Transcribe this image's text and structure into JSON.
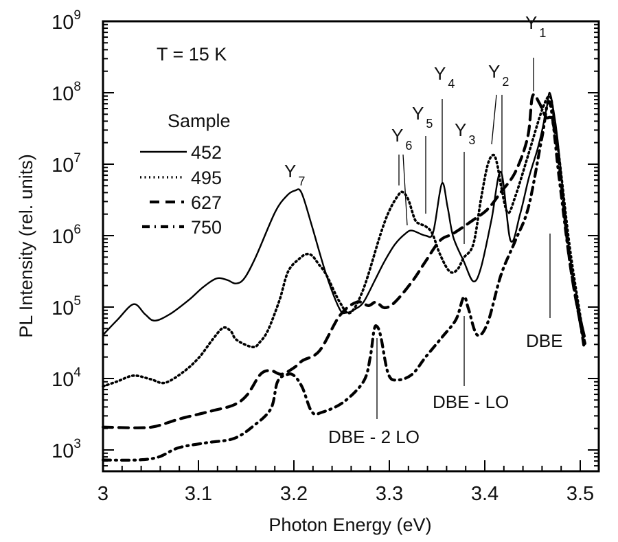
{
  "chart_data": {
    "type": "line",
    "title": "",
    "xlabel": "Photon Energy (eV)",
    "ylabel": "PL Intensity (rel. units)",
    "xlim": [
      3.0,
      3.52
    ],
    "ylim": [
      500,
      1000000000
    ],
    "yscale": "log",
    "x_ticks": [
      3.0,
      3.1,
      3.2,
      3.3,
      3.4,
      3.5
    ],
    "x_tick_labels": [
      "3",
      "3.1",
      "3.2",
      "3.3",
      "3.4",
      "3.5"
    ],
    "x_minor_step": 0.02,
    "y_ticks": [
      1000,
      10000,
      100000,
      1000000,
      10000000,
      100000000,
      1000000000
    ],
    "y_tick_labels": [
      {
        "base": "10",
        "exp": "3"
      },
      {
        "base": "10",
        "exp": "4"
      },
      {
        "base": "10",
        "exp": "5"
      },
      {
        "base": "10",
        "exp": "6"
      },
      {
        "base": "10",
        "exp": "7"
      },
      {
        "base": "10",
        "exp": "8"
      },
      {
        "base": "10",
        "exp": "9"
      }
    ],
    "grid": false,
    "annotation_temperature": "T = 15 K",
    "legend": {
      "title": "Sample",
      "placement": "top-left",
      "entries": [
        {
          "label": "452",
          "style": "solid"
        },
        {
          "label": "495",
          "style": "dotted"
        },
        {
          "label": "627",
          "style": "dashed"
        },
        {
          "label": "750",
          "style": "dashdot"
        }
      ]
    },
    "series": [
      {
        "name": "452",
        "style": "solid",
        "x": [
          3.0,
          3.015,
          3.032,
          3.044,
          3.054,
          3.07,
          3.09,
          3.105,
          3.119,
          3.13,
          3.139,
          3.148,
          3.16,
          3.18,
          3.192,
          3.201,
          3.208,
          3.219,
          3.234,
          3.248,
          3.255,
          3.264,
          3.273,
          3.285,
          3.295,
          3.306,
          3.317,
          3.324,
          3.338,
          3.346,
          3.355,
          3.361,
          3.367,
          3.378,
          3.388,
          3.396,
          3.407,
          3.417,
          3.427,
          3.437,
          3.446,
          3.455,
          3.46,
          3.465,
          3.468,
          3.472,
          3.476,
          3.482,
          3.489,
          3.495,
          3.5,
          3.505
        ],
        "log10_y": [
          4.61,
          4.82,
          5.04,
          4.9,
          4.81,
          4.9,
          5.1,
          5.28,
          5.4,
          5.38,
          5.33,
          5.4,
          5.7,
          6.32,
          6.55,
          6.63,
          6.6,
          6.13,
          5.45,
          4.97,
          4.92,
          4.97,
          5.07,
          5.38,
          5.64,
          5.88,
          6.03,
          6.07,
          6.0,
          6.05,
          6.73,
          6.4,
          5.98,
          5.64,
          5.36,
          5.55,
          6.22,
          6.89,
          5.93,
          6.3,
          6.8,
          7.2,
          7.47,
          7.8,
          8.0,
          7.75,
          7.38,
          6.6,
          5.74,
          5.25,
          4.88,
          4.59
        ]
      },
      {
        "name": "495",
        "style": "dotted",
        "x": [
          3.0,
          3.015,
          3.032,
          3.05,
          3.065,
          3.085,
          3.101,
          3.115,
          3.126,
          3.134,
          3.14,
          3.157,
          3.165,
          3.173,
          3.185,
          3.194,
          3.206,
          3.213,
          3.219,
          3.226,
          3.234,
          3.248,
          3.259,
          3.273,
          3.291,
          3.3,
          3.309,
          3.314,
          3.32,
          3.327,
          3.333,
          3.338,
          3.345,
          3.353,
          3.363,
          3.371,
          3.378,
          3.388,
          3.396,
          3.403,
          3.409,
          3.413,
          3.417,
          3.424,
          3.432,
          3.446,
          3.46,
          3.468,
          3.472,
          3.478,
          3.489,
          3.5,
          3.505
        ],
        "log10_y": [
          3.89,
          3.96,
          4.04,
          3.99,
          3.94,
          4.1,
          4.3,
          4.55,
          4.71,
          4.66,
          4.54,
          4.44,
          4.52,
          4.68,
          5.1,
          5.5,
          5.68,
          5.74,
          5.72,
          5.6,
          5.45,
          5.07,
          4.92,
          5.26,
          6.03,
          6.35,
          6.56,
          6.61,
          6.5,
          6.22,
          6.16,
          6.13,
          6.03,
          5.74,
          5.5,
          5.52,
          5.69,
          5.88,
          6.51,
          6.99,
          7.13,
          7.0,
          6.7,
          6.32,
          6.55,
          7.15,
          7.76,
          7.95,
          7.7,
          7.09,
          5.84,
          4.88,
          4.49
        ]
      },
      {
        "name": "627",
        "style": "dashed",
        "x": [
          3.0,
          3.036,
          3.055,
          3.079,
          3.1,
          3.115,
          3.137,
          3.151,
          3.165,
          3.176,
          3.187,
          3.2,
          3.209,
          3.227,
          3.248,
          3.266,
          3.278,
          3.286,
          3.295,
          3.306,
          3.324,
          3.338,
          3.353,
          3.367,
          3.388,
          3.403,
          3.417,
          3.432,
          3.445,
          3.45,
          3.457,
          3.464,
          3.471,
          3.478,
          3.489,
          3.5,
          3.505
        ],
        "log10_y": [
          3.32,
          3.31,
          3.33,
          3.43,
          3.5,
          3.55,
          3.63,
          3.77,
          4.06,
          4.11,
          4.06,
          4.15,
          4.25,
          4.39,
          4.88,
          5.07,
          5.02,
          5.07,
          4.99,
          5.07,
          5.36,
          5.64,
          5.93,
          6.03,
          6.22,
          6.37,
          6.61,
          6.89,
          7.38,
          7.95,
          7.86,
          7.66,
          7.6,
          6.99,
          5.64,
          4.78,
          4.49
        ]
      },
      {
        "name": "750",
        "style": "dashdot",
        "x": [
          3.0,
          3.036,
          3.058,
          3.079,
          3.108,
          3.137,
          3.158,
          3.176,
          3.183,
          3.194,
          3.201,
          3.209,
          3.219,
          3.23,
          3.252,
          3.273,
          3.28,
          3.284,
          3.287,
          3.291,
          3.299,
          3.309,
          3.324,
          3.338,
          3.356,
          3.37,
          3.378,
          3.383,
          3.392,
          3.403,
          3.417,
          3.432,
          3.446,
          3.46,
          3.468,
          3.478,
          3.489,
          3.5,
          3.504
        ],
        "log10_y": [
          2.86,
          2.86,
          2.9,
          3.03,
          3.1,
          3.16,
          3.34,
          3.58,
          3.96,
          4.06,
          4.03,
          3.87,
          3.53,
          3.53,
          3.67,
          3.96,
          4.3,
          4.68,
          4.73,
          4.59,
          4.06,
          3.98,
          4.06,
          4.3,
          4.59,
          4.83,
          5.14,
          4.97,
          4.61,
          4.78,
          5.45,
          5.93,
          6.41,
          7.38,
          7.86,
          6.8,
          5.64,
          4.78,
          4.44
        ]
      }
    ],
    "peak_labels": [
      {
        "main": "Y",
        "sub": "1",
        "energy": 3.451
      },
      {
        "main": "Y",
        "sub": "2",
        "energy": 3.414
      },
      {
        "main": "Y",
        "sub": "3",
        "energy": 3.378
      },
      {
        "main": "Y",
        "sub": "4",
        "energy": 3.355
      },
      {
        "main": "Y",
        "sub": "5",
        "energy": 3.338
      },
      {
        "main": "Y",
        "sub": "6",
        "energy": 3.312
      },
      {
        "main": "Y",
        "sub": "7",
        "energy": 3.201
      }
    ],
    "annotations": [
      {
        "text": "DBE",
        "energy": 3.468
      },
      {
        "text": "DBE - LO",
        "energy": 3.378
      },
      {
        "text": "DBE - 2 LO",
        "energy": 3.287
      }
    ]
  }
}
